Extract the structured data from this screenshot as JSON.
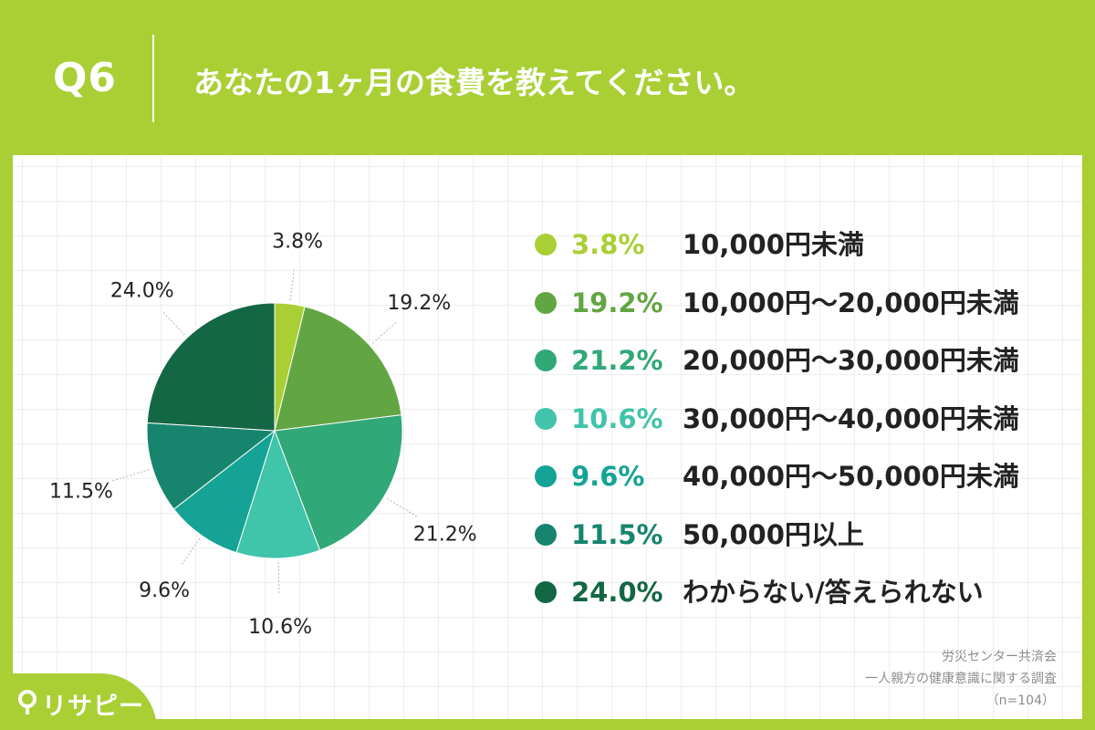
{
  "header": {
    "question_number": "Q6",
    "question_text": "あなたの1ヶ月の食費を教えてください。"
  },
  "footer": {
    "source": "労災センター共済会",
    "survey": "一人親方の健康意識に関する調査",
    "sample": "（n=104）"
  },
  "logo": {
    "text": "リサピー"
  },
  "colors": {
    "background": "#a9cf35",
    "card": "#ffffff"
  },
  "chart_data": {
    "type": "pie",
    "start": "12 o'clock, clockwise",
    "slices": [
      {
        "label": "10,000円未満",
        "value": 3.8,
        "value_label": "3.8%",
        "color": "#a9cf35"
      },
      {
        "label": "10,000円〜20,000円未満",
        "value": 19.2,
        "value_label": "19.2%",
        "color": "#62a643"
      },
      {
        "label": "20,000円〜30,000円未満",
        "value": 21.2,
        "value_label": "21.2%",
        "color": "#30a877"
      },
      {
        "label": "30,000円〜40,000円未満",
        "value": 10.6,
        "value_label": "10.6%",
        "color": "#40c4aa"
      },
      {
        "label": "40,000円〜50,000円未満",
        "value": 9.6,
        "value_label": "9.6%",
        "color": "#14a394"
      },
      {
        "label": "50,000円以上",
        "value": 11.5,
        "value_label": "11.5%",
        "color": "#17856d"
      },
      {
        "label": "わからない/答えられない",
        "value": 24.0,
        "value_label": "24.0%",
        "color": "#146745"
      }
    ],
    "legend_placement": "right"
  }
}
